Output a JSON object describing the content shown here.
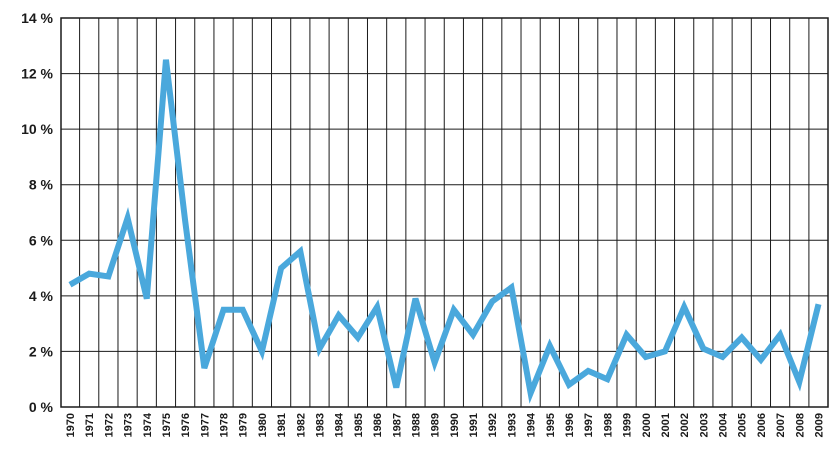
{
  "chart_data": {
    "type": "line",
    "title": "",
    "xlabel": "",
    "ylabel": "",
    "ylim": [
      0,
      14
    ],
    "y_ticks": [
      0,
      2,
      4,
      6,
      8,
      10,
      12,
      14
    ],
    "y_tick_labels": [
      "0 %",
      "2 %",
      "4 %",
      "6 %",
      "8 %",
      "10 %",
      "12 %",
      "14 %"
    ],
    "grid": true,
    "legend": "none",
    "line_color": "#4aa8dc",
    "grid_color": "#1a1a1a",
    "categories": [
      "1970",
      "1971",
      "1972",
      "1973",
      "1974",
      "1975",
      "1976",
      "1977",
      "1978",
      "1979",
      "1980",
      "1981",
      "1982",
      "1983",
      "1984",
      "1985",
      "1986",
      "1987",
      "1988",
      "1989",
      "1990",
      "1991",
      "1992",
      "1993",
      "1994",
      "1995",
      "1996",
      "1997",
      "1998",
      "1999",
      "2000",
      "2001",
      "2002",
      "2003",
      "2004",
      "2005",
      "2006",
      "2007",
      "2008",
      "2009"
    ],
    "series": [
      {
        "values": [
          4.4,
          4.8,
          4.7,
          6.8,
          3.9,
          12.5,
          6.7,
          1.4,
          3.5,
          3.5,
          2.0,
          5.0,
          5.6,
          2.1,
          3.3,
          2.5,
          3.6,
          0.7,
          3.9,
          1.6,
          3.5,
          2.6,
          3.8,
          4.3,
          0.5,
          2.2,
          0.8,
          1.3,
          1.0,
          2.6,
          1.8,
          2.0,
          3.6,
          2.1,
          1.8,
          2.5,
          1.7,
          2.6,
          0.9,
          3.7
        ]
      }
    ]
  }
}
